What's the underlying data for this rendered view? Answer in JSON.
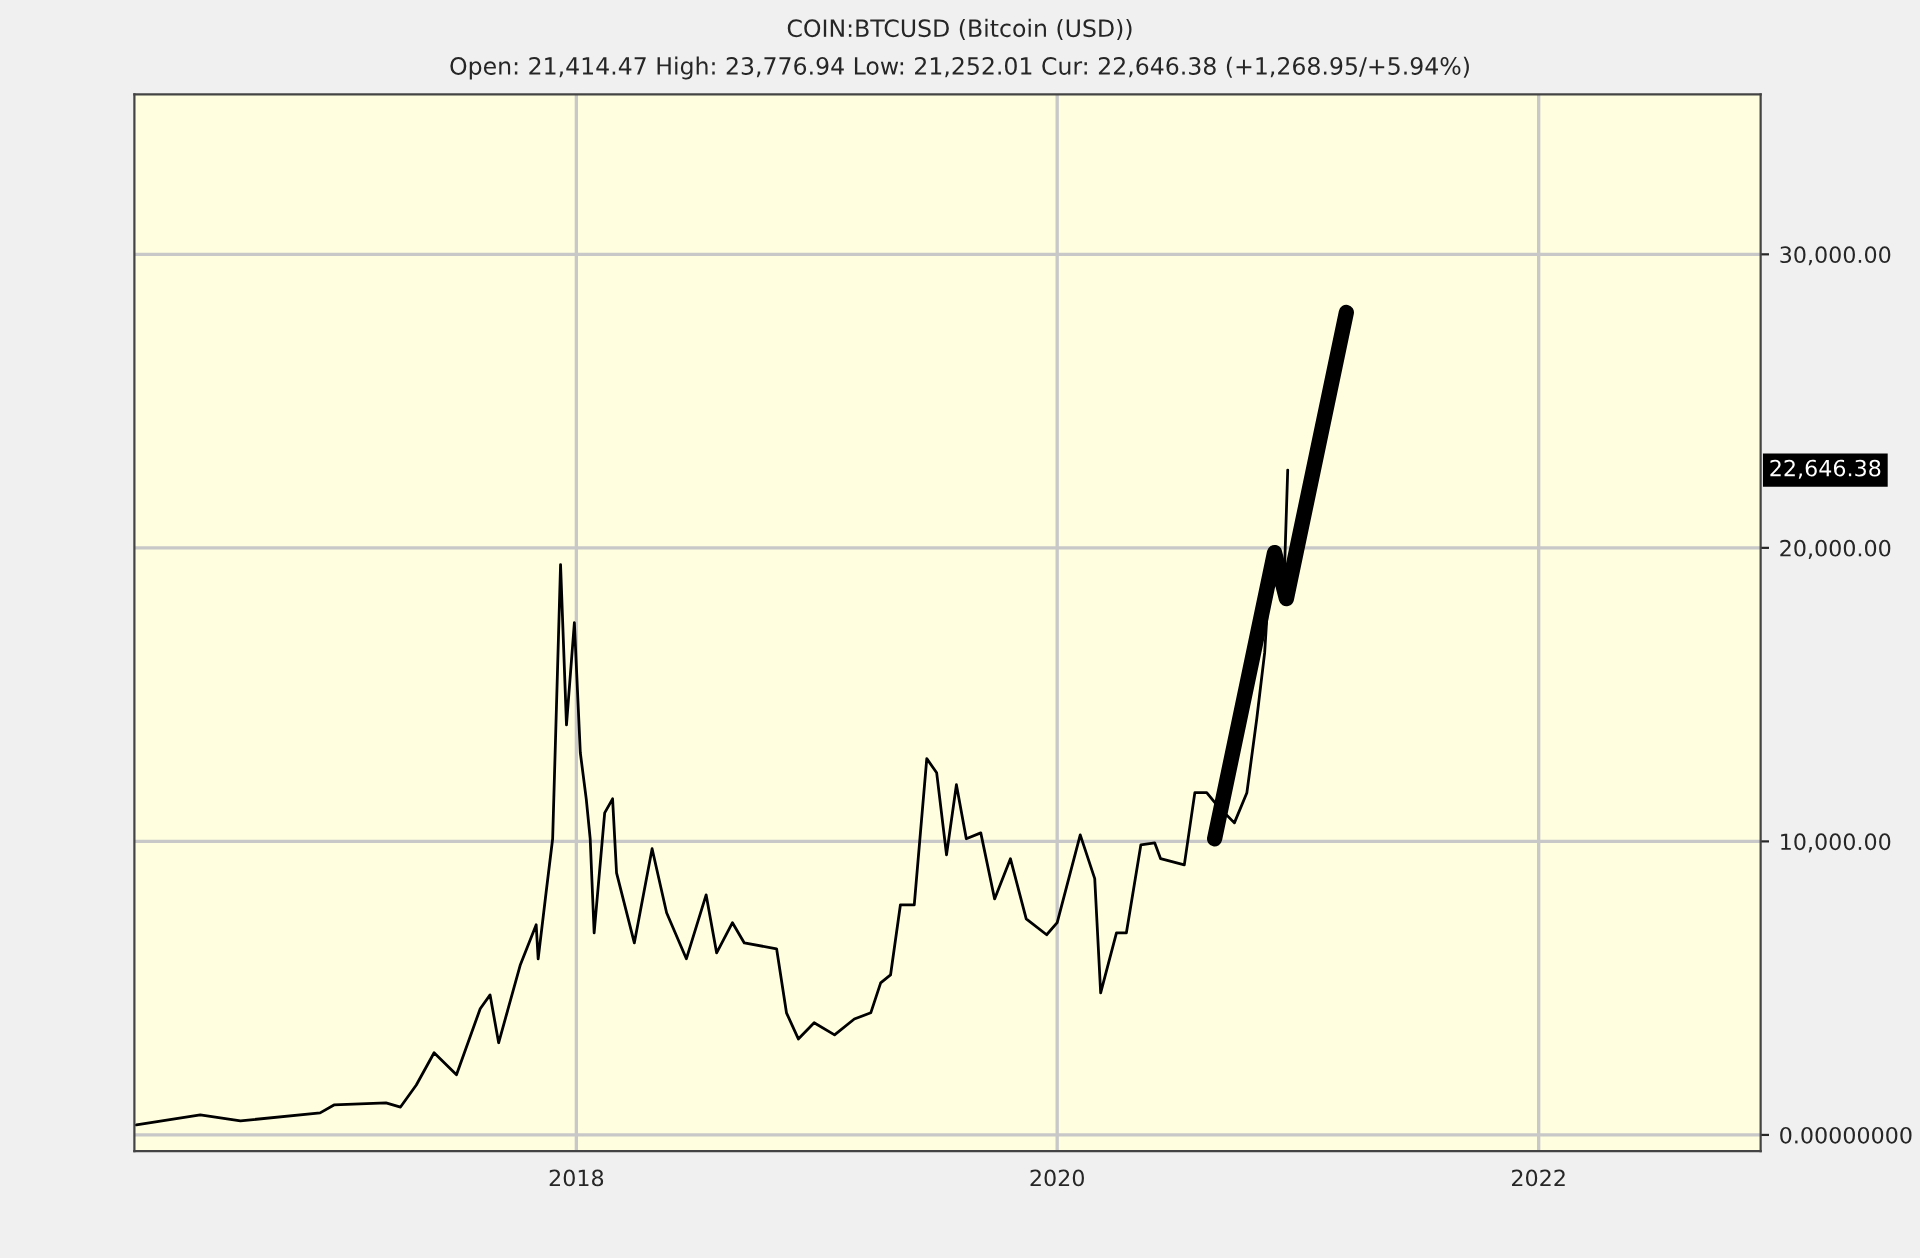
{
  "chart_data": {
    "type": "line",
    "title": "COIN:BTCUSD (Bitcoin (USD))",
    "subtitle": "Open: 21,414.47 High: 23,776.94 Low: 21,252.01 Cur: 22,646.38 (+1,268.95/+5.94%)",
    "series": [
      {
        "color": "#000000",
        "x": [
          "2016-03-04",
          "2016-06-09",
          "2016-08-09",
          "2016-12-08",
          "2016-12-29",
          "2017-03-18",
          "2017-04-09",
          "2017-05-03",
          "2017-05-30",
          "2017-07-03",
          "2017-08-08",
          "2017-08-23",
          "2017-09-05",
          "2017-10-08",
          "2017-11-01",
          "2017-11-04",
          "2017-11-16",
          "2017-11-26",
          "2017-12-08",
          "2017-12-17",
          "2017-12-29",
          "2018-01-07",
          "2018-01-16",
          "2018-01-22",
          "2018-01-28",
          "2018-02-13",
          "2018-02-25",
          "2018-03-03",
          "2018-03-30",
          "2018-04-26",
          "2018-05-18",
          "2018-06-17",
          "2018-07-17",
          "2018-08-02",
          "2018-08-26",
          "2018-09-13",
          "2018-11-01",
          "2018-11-16",
          "2018-12-04",
          "2018-12-28",
          "2019-01-28",
          "2019-02-27",
          "2019-03-24",
          "2019-04-08",
          "2019-04-23",
          "2019-05-08",
          "2019-05-29",
          "2019-06-17",
          "2019-07-02",
          "2019-07-17",
          "2019-08-01",
          "2019-08-16",
          "2019-09-07",
          "2019-09-28",
          "2019-10-22",
          "2019-11-15",
          "2019-12-16",
          "2020-01-01",
          "2020-02-05",
          "2020-02-27",
          "2020-03-07",
          "2020-03-31",
          "2020-04-15",
          "2020-05-07",
          "2020-05-28",
          "2020-06-06",
          "2020-07-12",
          "2020-07-28",
          "2020-08-15",
          "2020-08-30",
          "2020-09-26",
          "2020-10-15",
          "2020-10-30",
          "2020-11-11",
          "2020-11-20",
          "2020-12-11",
          "2020-12-16"
        ],
        "values": [
          340,
          680,
          480,
          750,
          1020,
          1090,
          950,
          1700,
          2800,
          2050,
          4300,
          4770,
          3140,
          5800,
          7160,
          6000,
          8250,
          10090,
          19430,
          13970,
          17450,
          13020,
          11450,
          10090,
          6880,
          10970,
          11450,
          8930,
          6540,
          9750,
          7570,
          6000,
          8180,
          6200,
          7230,
          6540,
          6340,
          4160,
          3270,
          3820,
          3410,
          3950,
          4160,
          5180,
          5450,
          7840,
          7840,
          12820,
          12340,
          9540,
          11930,
          10090,
          10290,
          8040,
          9410,
          7360,
          6820,
          7230,
          10220,
          8730,
          4840,
          6880,
          6880,
          9880,
          9950,
          9410,
          9200,
          11660,
          11660,
          11250,
          10630,
          11660,
          14180,
          16430,
          19630,
          19150,
          22650
        ]
      },
      {
        "color": "#000000",
        "x": [
          "2020-08-27",
          "2020-11-26",
          "2020-12-14",
          "2021-03-15"
        ],
        "values": [
          10090,
          19840,
          18270,
          28020
        ]
      }
    ],
    "xlim": [
      "2016-03-01",
      "2022-12-04"
    ],
    "xticks": [
      {
        "value": "2018-01-01",
        "label": "2018"
      },
      {
        "value": "2020-01-01",
        "label": "2020"
      },
      {
        "value": "2022-01-01",
        "label": "2022"
      }
    ],
    "ylim": [
      -550,
      35450
    ],
    "yticks": [
      {
        "value": 0,
        "label": "0.00000000"
      },
      {
        "value": 10000,
        "label": "10,000.00"
      },
      {
        "value": 20000,
        "label": "20,000.00"
      },
      {
        "value": 30000,
        "label": "30,000.00"
      }
    ],
    "annotations": [
      "22,646.38"
    ],
    "grid": true,
    "line_style": "solid"
  }
}
